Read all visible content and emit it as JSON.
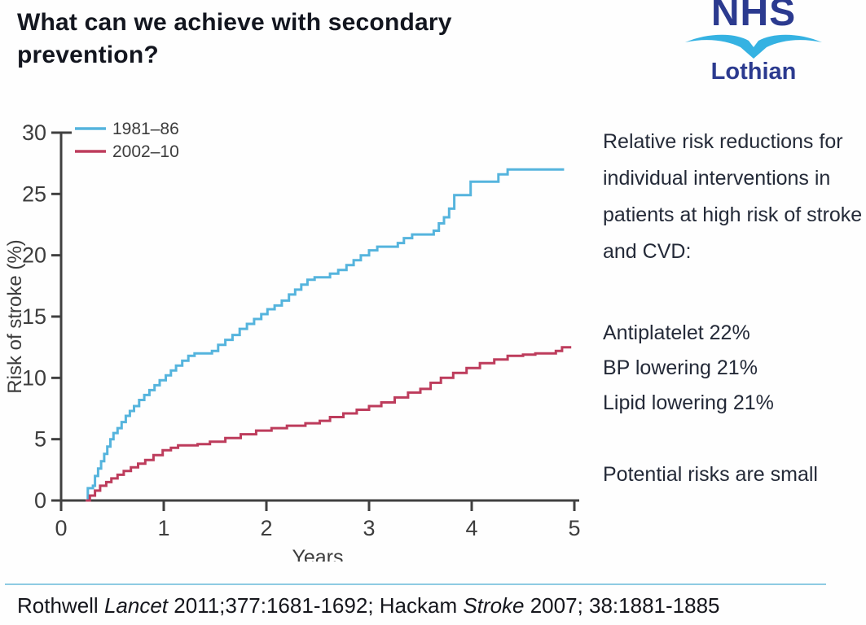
{
  "slide": {
    "title": "What can we achieve with secondary prevention?",
    "logo": {
      "org": "NHS",
      "region": "Lothian",
      "dark_blue": "#2b3a8f",
      "light_blue": "#35b2e2"
    },
    "right_panel": {
      "intro_lines": [
        "Relative risk reductions for",
        "individual interventions in",
        "patients at high risk of stroke",
        "and CVD:"
      ],
      "interventions": [
        "Antiplatelet 22%",
        "BP lowering 21%",
        "Lipid lowering 21%"
      ],
      "note": "Potential risks are small"
    },
    "footer": {
      "divider_color": "#8ecbe3",
      "citation_segments": [
        {
          "text": "Rothwell ",
          "italic": false
        },
        {
          "text": "Lancet",
          "italic": true
        },
        {
          "text": " 2011;377:1681-1692; Hackam ",
          "italic": false
        },
        {
          "text": "Stroke",
          "italic": true
        },
        {
          "text": " 2007; 38:1881-1885",
          "italic": false
        }
      ]
    }
  },
  "chart_data": {
    "type": "line",
    "subtype": "step-kaplan-meier",
    "title": "",
    "xlabel": "Years",
    "ylabel": "Risk of stroke (%)",
    "xlim": [
      0,
      5
    ],
    "ylim": [
      0,
      30
    ],
    "xticks": [
      0,
      1,
      2,
      3,
      4,
      5
    ],
    "yticks": [
      0,
      5,
      10,
      15,
      20,
      25,
      30
    ],
    "grid": false,
    "legend_position": "top-left",
    "axis_color": "#404040",
    "tick_label_color": "#3d3d3d",
    "series": [
      {
        "name": "1981–86",
        "color": "#55b4dd",
        "points": [
          [
            0.24,
            0
          ],
          [
            0.26,
            1.0
          ],
          [
            0.31,
            1.2
          ],
          [
            0.33,
            2.0
          ],
          [
            0.36,
            2.6
          ],
          [
            0.39,
            3.2
          ],
          [
            0.42,
            3.8
          ],
          [
            0.45,
            4.4
          ],
          [
            0.48,
            5.0
          ],
          [
            0.51,
            5.5
          ],
          [
            0.55,
            5.9
          ],
          [
            0.59,
            6.4
          ],
          [
            0.63,
            6.9
          ],
          [
            0.67,
            7.3
          ],
          [
            0.71,
            7.7
          ],
          [
            0.76,
            8.2
          ],
          [
            0.81,
            8.6
          ],
          [
            0.86,
            9.0
          ],
          [
            0.91,
            9.4
          ],
          [
            0.96,
            9.8
          ],
          [
            1.02,
            10.2
          ],
          [
            1.07,
            10.6
          ],
          [
            1.12,
            11.0
          ],
          [
            1.18,
            11.4
          ],
          [
            1.24,
            11.8
          ],
          [
            1.3,
            12.0
          ],
          [
            1.47,
            12.2
          ],
          [
            1.53,
            12.7
          ],
          [
            1.6,
            13.1
          ],
          [
            1.67,
            13.5
          ],
          [
            1.74,
            14.0
          ],
          [
            1.81,
            14.4
          ],
          [
            1.88,
            14.8
          ],
          [
            1.95,
            15.2
          ],
          [
            2.01,
            15.6
          ],
          [
            2.08,
            15.9
          ],
          [
            2.15,
            16.3
          ],
          [
            2.22,
            16.8
          ],
          [
            2.28,
            17.2
          ],
          [
            2.34,
            17.6
          ],
          [
            2.4,
            18.0
          ],
          [
            2.47,
            18.2
          ],
          [
            2.62,
            18.5
          ],
          [
            2.7,
            18.8
          ],
          [
            2.78,
            19.2
          ],
          [
            2.85,
            19.6
          ],
          [
            2.92,
            20.0
          ],
          [
            3.0,
            20.4
          ],
          [
            3.08,
            20.7
          ],
          [
            3.28,
            21.0
          ],
          [
            3.34,
            21.4
          ],
          [
            3.42,
            21.7
          ],
          [
            3.63,
            22.0
          ],
          [
            3.68,
            22.6
          ],
          [
            3.73,
            23.1
          ],
          [
            3.78,
            23.8
          ],
          [
            3.83,
            24.9
          ],
          [
            3.99,
            26.0
          ],
          [
            4.26,
            26.6
          ],
          [
            4.35,
            27.0
          ],
          [
            4.9,
            27.0
          ]
        ]
      },
      {
        "name": "2002–10",
        "color": "#bd3c5c",
        "points": [
          [
            0.24,
            0
          ],
          [
            0.28,
            0.4
          ],
          [
            0.33,
            0.8
          ],
          [
            0.38,
            1.2
          ],
          [
            0.44,
            1.5
          ],
          [
            0.49,
            1.8
          ],
          [
            0.55,
            2.1
          ],
          [
            0.61,
            2.4
          ],
          [
            0.68,
            2.7
          ],
          [
            0.75,
            3.0
          ],
          [
            0.82,
            3.3
          ],
          [
            0.9,
            3.7
          ],
          [
            0.99,
            4.1
          ],
          [
            1.07,
            4.3
          ],
          [
            1.14,
            4.5
          ],
          [
            1.33,
            4.6
          ],
          [
            1.45,
            4.8
          ],
          [
            1.6,
            5.1
          ],
          [
            1.75,
            5.4
          ],
          [
            1.9,
            5.7
          ],
          [
            2.05,
            5.9
          ],
          [
            2.2,
            6.1
          ],
          [
            2.38,
            6.3
          ],
          [
            2.52,
            6.5
          ],
          [
            2.62,
            6.8
          ],
          [
            2.75,
            7.1
          ],
          [
            2.88,
            7.4
          ],
          [
            3.0,
            7.7
          ],
          [
            3.12,
            8.0
          ],
          [
            3.25,
            8.4
          ],
          [
            3.38,
            8.8
          ],
          [
            3.5,
            9.1
          ],
          [
            3.6,
            9.6
          ],
          [
            3.7,
            10.0
          ],
          [
            3.82,
            10.4
          ],
          [
            3.95,
            10.8
          ],
          [
            4.08,
            11.2
          ],
          [
            4.22,
            11.5
          ],
          [
            4.35,
            11.8
          ],
          [
            4.5,
            11.9
          ],
          [
            4.62,
            12.0
          ],
          [
            4.82,
            12.2
          ],
          [
            4.88,
            12.5
          ],
          [
            4.97,
            12.5
          ]
        ]
      }
    ]
  }
}
